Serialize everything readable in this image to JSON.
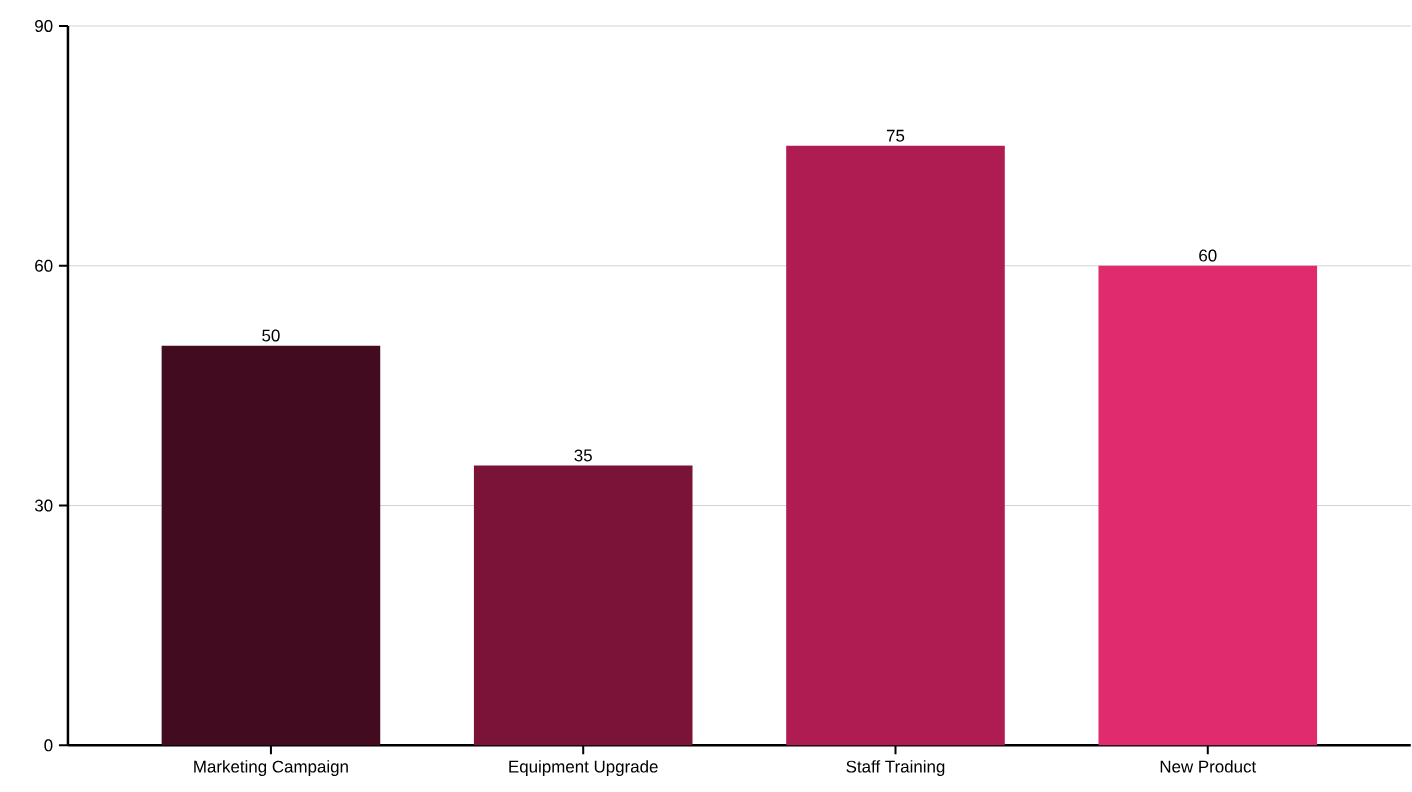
{
  "chart_data": {
    "type": "bar",
    "categories": [
      "Marketing Campaign",
      "Equipment Upgrade",
      "Staff Training",
      "New Product"
    ],
    "values": [
      50,
      35,
      75,
      60
    ],
    "colors": [
      "#430b1f",
      "#7b1338",
      "#ae1c51",
      "#e02c6f"
    ],
    "ylim": [
      0,
      90
    ],
    "yticks": [
      0,
      30,
      60,
      90
    ],
    "grid": "y",
    "data_labels": true
  }
}
